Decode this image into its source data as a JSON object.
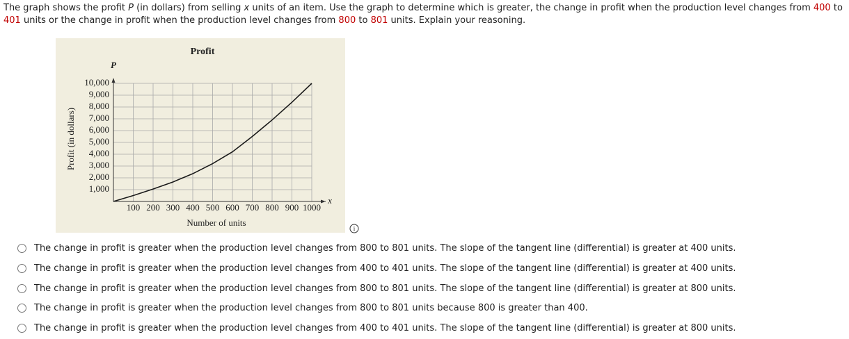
{
  "question": {
    "segments": [
      {
        "text": "The graph shows the profit ",
        "style": "plain"
      },
      {
        "text": "P",
        "style": "italic"
      },
      {
        "text": " (in dollars) from selling ",
        "style": "plain"
      },
      {
        "text": "x",
        "style": "italic"
      },
      {
        "text": " units of an item. Use the graph to determine which is greater, the change in profit when the production level changes from ",
        "style": "plain"
      },
      {
        "text": "400",
        "style": "red"
      },
      {
        "text": " to ",
        "style": "plain"
      },
      {
        "text": "401",
        "style": "red"
      },
      {
        "text": " units or the change in profit when the production level changes from ",
        "style": "plain"
      },
      {
        "text": "800",
        "style": "red"
      },
      {
        "text": " to ",
        "style": "plain"
      },
      {
        "text": "801",
        "style": "red"
      },
      {
        "text": " units. Explain your reasoning.",
        "style": "plain"
      }
    ]
  },
  "chart_data": {
    "type": "line",
    "title": "Profit",
    "y_symbol": "P",
    "x_symbol": "x",
    "ylabel": "Profit (in dollars)",
    "xlabel": "Number of units",
    "x": [
      0,
      100,
      200,
      300,
      400,
      500,
      600,
      700,
      800,
      900,
      1000
    ],
    "values": [
      0,
      500,
      1050,
      1650,
      2350,
      3200,
      4200,
      5500,
      6900,
      8400,
      10000
    ],
    "color": "#1a1a1a",
    "xlim": [
      0,
      1000
    ],
    "ylim": [
      0,
      10000
    ],
    "xticks": [
      100,
      200,
      300,
      400,
      500,
      600,
      700,
      800,
      900,
      1000
    ],
    "yticks": [
      {
        "value": 1000,
        "label": "1,000"
      },
      {
        "value": 2000,
        "label": "2,000"
      },
      {
        "value": 3000,
        "label": "3,000"
      },
      {
        "value": 4000,
        "label": "4,000"
      },
      {
        "value": 5000,
        "label": "5,000"
      },
      {
        "value": 6000,
        "label": "6,000"
      },
      {
        "value": 7000,
        "label": "7,000"
      },
      {
        "value": 8000,
        "label": "8,000"
      },
      {
        "value": 9000,
        "label": "9,000"
      },
      {
        "value": 10000,
        "label": "10,000"
      }
    ],
    "grid": true
  },
  "options": [
    "The change in profit is greater when the production level changes from 800 to 801 units. The slope of the tangent line (differential) is greater at 400 units.",
    "The change in profit is greater when the production level changes from 400 to 401 units. The slope of the tangent line (differential) is greater at 400 units.",
    "The change in profit is greater when the production level changes from 800 to 801 units. The slope of the tangent line (differential) is greater at 800 units.",
    "The change in profit is greater when the production level changes from 800 to 801 units because 800 is greater than 400.",
    "The change in profit is greater when the production level changes from 400 to 401 units. The slope of the tangent line (differential) is greater at 800 units."
  ]
}
